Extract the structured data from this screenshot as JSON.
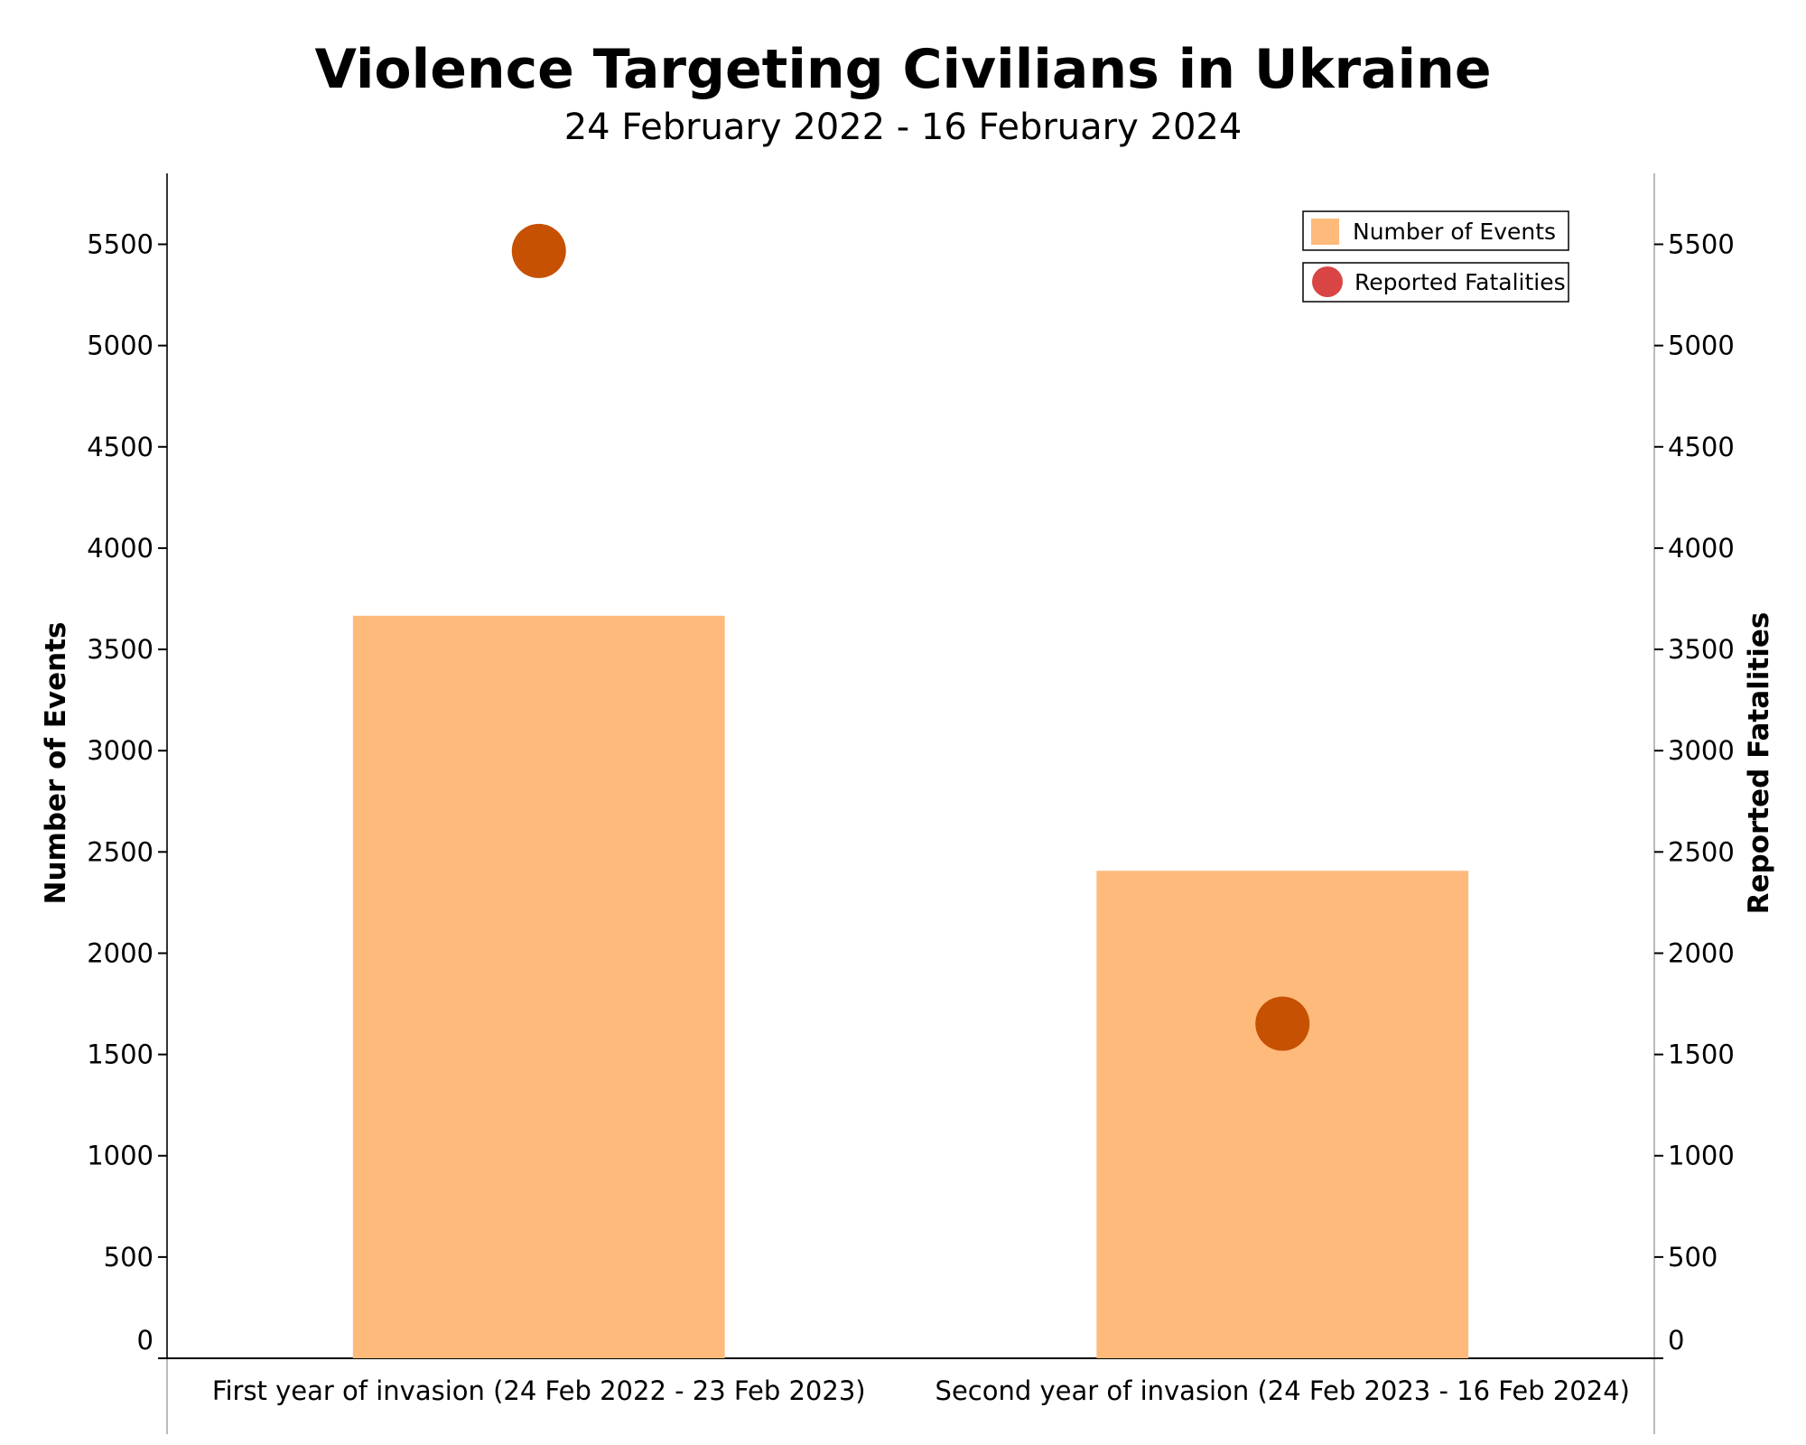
{
  "title": "Violence Targeting Civilians in Ukraine",
  "subtitle": "24 February 2022 - 16 February 2024",
  "chart_data": {
    "type": "bar",
    "categories": [
      "First year of invasion (24 Feb 2022 - 23 Feb 2023)",
      "Second year of invasion (24 Feb 2023 - 16 Feb 2024)"
    ],
    "series": [
      {
        "name": "Number of Events",
        "kind": "bar",
        "axis": "left",
        "color": "#fdba7b",
        "values": [
          3666,
          2407
        ]
      },
      {
        "name": "Reported Fatalities",
        "kind": "point",
        "axis": "right",
        "color": "#c65102",
        "legend_color": "#d94545",
        "values": [
          5467,
          1652
        ]
      }
    ],
    "ylabel": "Number of Events",
    "y2label": "Reported Fatalities",
    "ylim": [
      0,
      5850
    ],
    "y2lim": [
      0,
      5850
    ],
    "yticks": [
      0,
      500,
      1000,
      1500,
      2000,
      2500,
      3000,
      3500,
      4000,
      4500,
      5000,
      5500
    ],
    "grid": false,
    "legend_position": "top-right"
  }
}
